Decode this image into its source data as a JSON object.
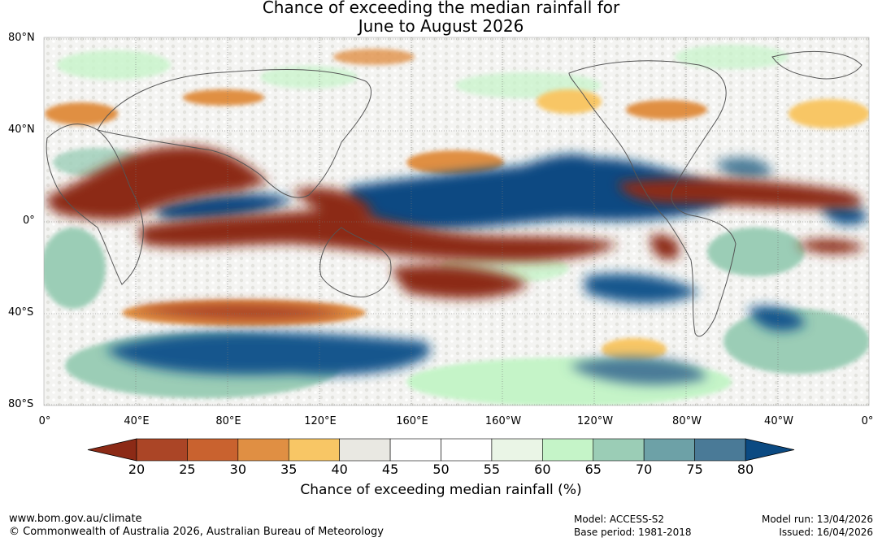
{
  "title_line1": "Chance of exceeding the median rainfall for",
  "title_line2": "June to August 2026",
  "lat_labels": [
    "80°N",
    "40°N",
    "0°",
    "40°S",
    "80°S"
  ],
  "lon_labels": [
    "0°",
    "40°E",
    "80°E",
    "120°E",
    "160°E",
    "160°W",
    "120°W",
    "80°W",
    "40°W",
    "0°"
  ],
  "colorbar": {
    "ticks": [
      "20",
      "25",
      "30",
      "35",
      "40",
      "45",
      "50",
      "55",
      "60",
      "65",
      "70",
      "75",
      "80"
    ],
    "low_extend_color": "#8c2a16",
    "high_extend_color": "#0b4a82",
    "bin_colors": [
      "#ab4526",
      "#c9622f",
      "#e08f43",
      "#f8c665",
      "#e9e8e2",
      "#ffffff",
      "#ffffff",
      "#eaf5e6",
      "#c5f4c8",
      "#9bcdb6",
      "#6da1a7",
      "#4a7a97"
    ],
    "label": "Chance of exceeding median rainfall (%)"
  },
  "footer": {
    "website": "www.bom.gov.au/climate",
    "copyright": "© Commonwealth of Australia 2026, Australian Bureau of Meteorology",
    "model": "Model: ACCESS-S2",
    "base_period": "Base period: 1981-2018",
    "model_run": "Model run: 13/04/2026",
    "issued": "Issued: 16/04/2026"
  }
}
